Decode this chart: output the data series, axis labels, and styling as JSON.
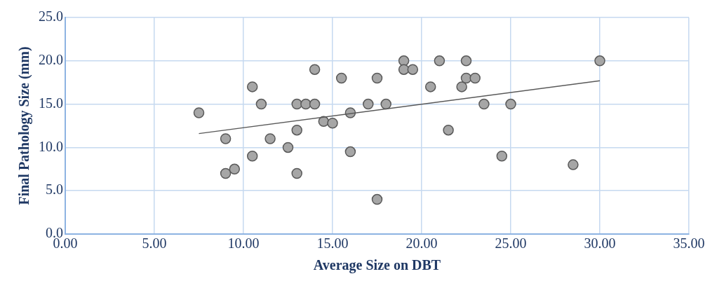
{
  "chart_data": {
    "type": "scatter",
    "xlabel": "Average Size on DBT",
    "ylabel": "Final Pathology Size (mm)",
    "xlim": [
      0,
      35
    ],
    "xticks": [
      {
        "value": 0,
        "label": "0.00"
      },
      {
        "value": 5,
        "label": "5.00"
      },
      {
        "value": 10,
        "label": "10.00"
      },
      {
        "value": 15,
        "label": "15.00"
      },
      {
        "value": 20,
        "label": "20.00"
      },
      {
        "value": 25,
        "label": "25.00"
      },
      {
        "value": 30,
        "label": "30.00"
      },
      {
        "value": 35,
        "label": "35.00"
      }
    ],
    "ylim": [
      0,
      25
    ],
    "yticks": [
      {
        "value": 0,
        "label": "0.0"
      },
      {
        "value": 5,
        "label": "5.0"
      },
      {
        "value": 10,
        "label": "10.0"
      },
      {
        "value": 15,
        "label": "15.0"
      },
      {
        "value": 20,
        "label": "20.0"
      },
      {
        "value": 25,
        "label": "25.0"
      }
    ],
    "grid": true,
    "legend": false,
    "marker": "circle",
    "series": [
      {
        "type": "scatter",
        "color": "#a6a6a6",
        "x": [
          7.5,
          9,
          9,
          9.5,
          10.5,
          10.5,
          11,
          11.5,
          12.5,
          13,
          13,
          13,
          13.5,
          14,
          14,
          14.5,
          15,
          15.5,
          16,
          16,
          17,
          17.5,
          17.5,
          18,
          19,
          19,
          19.5,
          20.5,
          21,
          21.5,
          22.25,
          22.5,
          22.5,
          23,
          23.5,
          24.5,
          25,
          28.5,
          30
        ],
        "values": [
          14,
          11,
          7,
          7.5,
          17,
          9,
          15,
          11,
          10,
          15,
          12,
          7,
          15,
          19,
          15,
          13,
          12.8,
          18,
          14,
          9.5,
          15,
          18,
          4,
          15,
          20,
          19,
          19,
          17,
          20,
          12,
          17,
          20,
          18,
          18,
          15,
          9,
          15,
          8,
          20
        ]
      },
      {
        "type": "line",
        "color": "#595959",
        "x": [
          7.5,
          30
        ],
        "values": [
          11.6,
          17.7
        ],
        "marker": "none",
        "line_style": "solid"
      }
    ]
  }
}
